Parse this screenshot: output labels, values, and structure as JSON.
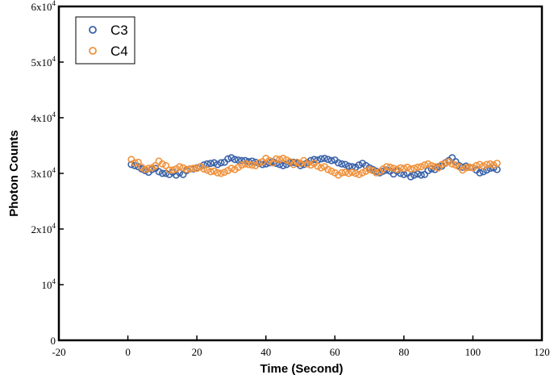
{
  "chart_data": {
    "type": "scatter",
    "title": "",
    "xlabel": "Time (Second)",
    "ylabel": "Photon Counts",
    "xlim": [
      -20,
      120
    ],
    "ylim": [
      0,
      60000
    ],
    "x_ticks": [
      -20,
      0,
      20,
      40,
      60,
      80,
      100,
      120
    ],
    "y_ticks": [
      {
        "value": 0,
        "base": "0",
        "exp": ""
      },
      {
        "value": 10000,
        "base": "10",
        "exp": "4"
      },
      {
        "value": 20000,
        "base": "2x10",
        "exp": "4"
      },
      {
        "value": 30000,
        "base": "3x10",
        "exp": "4"
      },
      {
        "value": 40000,
        "base": "4x10",
        "exp": "4"
      },
      {
        "value": 50000,
        "base": "5x10",
        "exp": "4"
      },
      {
        "value": 60000,
        "base": "6x10",
        "exp": "4"
      }
    ],
    "grid": false,
    "legend_position": "top-left",
    "marker": "open-circle",
    "series": [
      {
        "name": "C3",
        "color": "#3a62a8",
        "x": [
          1,
          2,
          3,
          4,
          5,
          6,
          7,
          8,
          9,
          10,
          11,
          12,
          13,
          14,
          15,
          16,
          17,
          18,
          19,
          20,
          21,
          22,
          23,
          24,
          25,
          26,
          27,
          28,
          29,
          30,
          31,
          32,
          33,
          34,
          35,
          36,
          37,
          38,
          39,
          40,
          41,
          42,
          43,
          44,
          45,
          46,
          47,
          48,
          49,
          50,
          51,
          52,
          53,
          54,
          55,
          56,
          57,
          58,
          59,
          60,
          61,
          62,
          63,
          64,
          65,
          66,
          67,
          68,
          69,
          70,
          71,
          72,
          73,
          74,
          75,
          76,
          77,
          78,
          79,
          80,
          81,
          82,
          83,
          84,
          85,
          86,
          87,
          88,
          89,
          90,
          91,
          92,
          93,
          94,
          95,
          96,
          97,
          98,
          99,
          100,
          101,
          102,
          103,
          104,
          105,
          106,
          107
        ],
        "y": [
          31600,
          31400,
          31200,
          30800,
          30500,
          30200,
          30700,
          30900,
          30300,
          30000,
          30000,
          29800,
          30200,
          29700,
          30100,
          29800,
          30500,
          30800,
          30800,
          31000,
          31200,
          31500,
          31700,
          31800,
          31900,
          31600,
          31900,
          32000,
          32600,
          32800,
          32500,
          32400,
          32300,
          32300,
          32100,
          32200,
          32000,
          31800,
          31600,
          31700,
          31900,
          32100,
          31800,
          31600,
          31400,
          31600,
          31900,
          32000,
          31800,
          31400,
          31600,
          31900,
          32300,
          32500,
          32400,
          32600,
          32700,
          32500,
          32300,
          32400,
          31900,
          31700,
          31600,
          31300,
          31200,
          31100,
          31500,
          31800,
          31400,
          31000,
          30700,
          30400,
          30100,
          30400,
          30600,
          30400,
          29900,
          30400,
          30000,
          29800,
          30000,
          29400,
          29700,
          29900,
          29700,
          29800,
          30500,
          30800,
          30700,
          31200,
          31300,
          31900,
          32300,
          32800,
          32100,
          31400,
          31100,
          31300,
          31100,
          31000,
          30600,
          30100,
          30300,
          30600,
          30900,
          31000,
          30700
        ]
      },
      {
        "name": "C4",
        "color": "#f0923c",
        "x": [
          1,
          2,
          3,
          4,
          5,
          6,
          7,
          8,
          9,
          10,
          11,
          12,
          13,
          14,
          15,
          16,
          17,
          18,
          19,
          20,
          21,
          22,
          23,
          24,
          25,
          26,
          27,
          28,
          29,
          30,
          31,
          32,
          33,
          34,
          35,
          36,
          37,
          38,
          39,
          40,
          41,
          42,
          43,
          44,
          45,
          46,
          47,
          48,
          49,
          50,
          51,
          52,
          53,
          54,
          55,
          56,
          57,
          58,
          59,
          60,
          61,
          62,
          63,
          64,
          65,
          66,
          67,
          68,
          69,
          70,
          71,
          72,
          73,
          74,
          75,
          76,
          77,
          78,
          79,
          80,
          81,
          82,
          83,
          84,
          85,
          86,
          87,
          88,
          89,
          90,
          91,
          92,
          93,
          94,
          95,
          96,
          97,
          98,
          99,
          100,
          101,
          102,
          103,
          104,
          105,
          106,
          107
        ],
        "y": [
          32500,
          31900,
          32000,
          31100,
          30700,
          30900,
          31000,
          31400,
          32200,
          31700,
          31400,
          30600,
          30600,
          30800,
          31200,
          31000,
          30700,
          30800,
          30900,
          30900,
          31200,
          30800,
          30600,
          30300,
          30400,
          30100,
          30000,
          30200,
          30500,
          30900,
          30700,
          31100,
          31500,
          31700,
          31600,
          31500,
          31400,
          31900,
          32100,
          32700,
          32300,
          31900,
          32600,
          32500,
          32700,
          32400,
          32100,
          31600,
          32000,
          31800,
          32300,
          31700,
          31500,
          31800,
          31300,
          31000,
          31200,
          30700,
          30400,
          30100,
          29700,
          30100,
          30200,
          30000,
          30200,
          30000,
          29800,
          30100,
          30400,
          30700,
          30500,
          30100,
          30300,
          30800,
          31200,
          31100,
          30900,
          30700,
          31000,
          30900,
          31100,
          30800,
          30900,
          31100,
          31200,
          31500,
          31700,
          31400,
          31200,
          31000,
          31600,
          31800,
          32100,
          31700,
          31500,
          31200,
          30600,
          31000,
          31100,
          31000,
          31400,
          31600,
          31300,
          31600,
          31700,
          31500,
          31800
        ]
      }
    ]
  }
}
